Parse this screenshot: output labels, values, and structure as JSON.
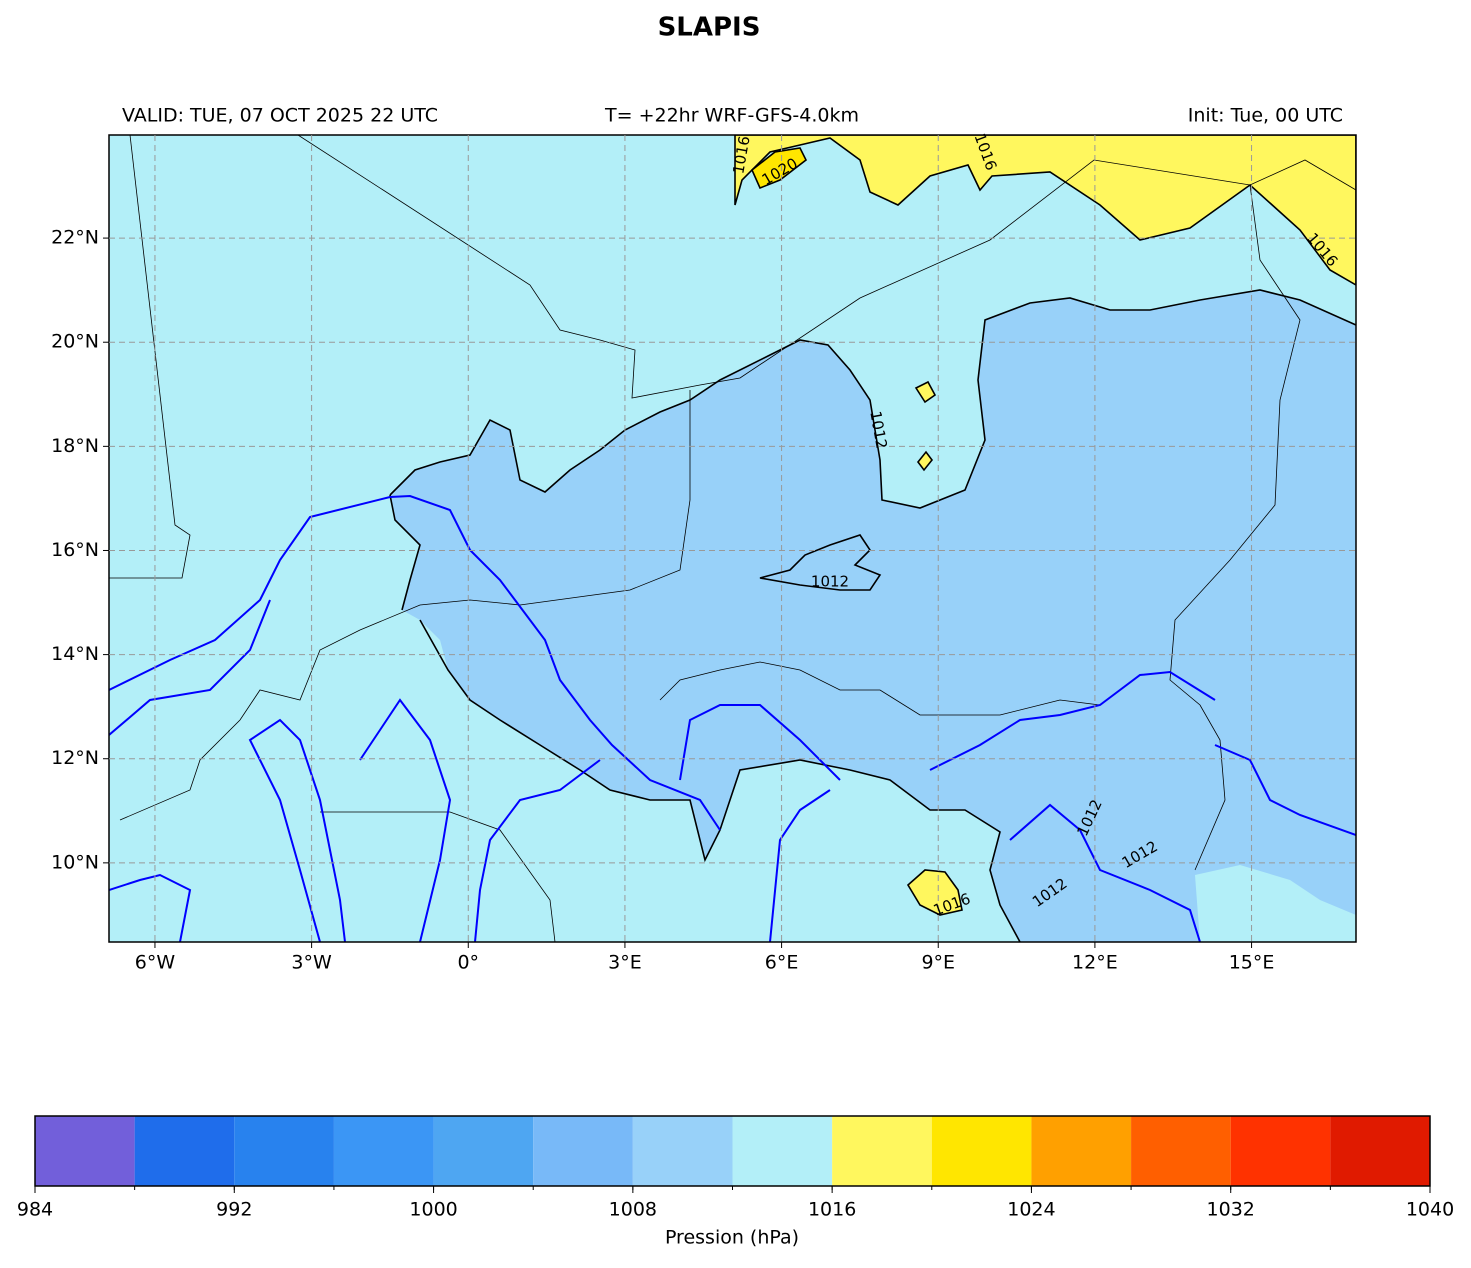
{
  "title": "SLAPIS",
  "header": {
    "left": "VALID: TUE, 07 OCT 2025 22 UTC",
    "center": "T= +22hr WRF-GFS-4.0km",
    "right": "Init: Tue, 00 UTC"
  },
  "map": {
    "xlim": [
      -6.88,
      17.0
    ],
    "ylim": [
      8.48,
      23.98
    ],
    "xticks": [
      {
        "value": -6,
        "label": "6°W"
      },
      {
        "value": -3,
        "label": "3°W"
      },
      {
        "value": 0,
        "label": "0°"
      },
      {
        "value": 3,
        "label": "3°E"
      },
      {
        "value": 6,
        "label": "6°E"
      },
      {
        "value": 9,
        "label": "9°E"
      },
      {
        "value": 12,
        "label": "12°E"
      },
      {
        "value": 15,
        "label": "15°E"
      }
    ],
    "yticks": [
      {
        "value": 10,
        "label": "10°N"
      },
      {
        "value": 12,
        "label": "12°N"
      },
      {
        "value": 14,
        "label": "14°N"
      },
      {
        "value": 16,
        "label": "16°N"
      },
      {
        "value": 18,
        "label": "18°N"
      },
      {
        "value": 20,
        "label": "20°N"
      },
      {
        "value": 22,
        "label": "22°N"
      }
    ],
    "grid": true,
    "contour_labels": [
      1016,
      1020,
      1016,
      1016,
      1012,
      1012,
      1016,
      1012,
      1012,
      1012
    ]
  },
  "colorbar": {
    "label": "Pression (hPa)",
    "boundaries": [
      984,
      988,
      992,
      996,
      1000,
      1004,
      1008,
      1012,
      1016,
      1020,
      1024,
      1028,
      1032,
      1036,
      1040
    ],
    "colors": [
      "#725fda",
      "#1f6deb",
      "#2882ee",
      "#3b96f5",
      "#4ea6f2",
      "#78b9f8",
      "#98d1f9",
      "#b3eff8",
      "#fff75e",
      "#ffe600",
      "#ffa000",
      "#ff5f00",
      "#ff3200",
      "#e01a00"
    ],
    "ticks": [
      984,
      992,
      1000,
      1008,
      1016,
      1024,
      1032,
      1040
    ]
  }
}
